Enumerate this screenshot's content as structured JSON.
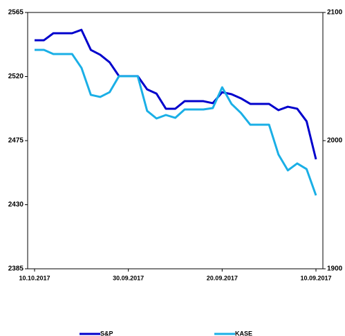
{
  "chart_data": {
    "type": "line",
    "categories": [
      "10.10.2017",
      null,
      null,
      null,
      null,
      null,
      null,
      null,
      null,
      null,
      "30.09.2017",
      null,
      null,
      null,
      null,
      null,
      null,
      null,
      null,
      null,
      "20.09.2017",
      null,
      null,
      null,
      null,
      null,
      null,
      null,
      null,
      null,
      "10.09.2017"
    ],
    "series": [
      {
        "name": "S&P",
        "color": "#0000cc",
        "axis": "y",
        "values": [
          2545.5,
          2545.5,
          2550.4,
          2550.4,
          2550.4,
          2552.8,
          2538.7,
          2535.3,
          2530,
          2520.3,
          2520.3,
          2520.3,
          2511,
          2508,
          2497.4,
          2497.4,
          2502.7,
          2502.7,
          2502.7,
          2501.3,
          2509,
          2507.6,
          2504.7,
          2500.8,
          2500.8,
          2500.8,
          2496.4,
          2498.8,
          2497.4,
          2488.6,
          2461.9
        ]
      },
      {
        "name": "KASE",
        "color": "#1aafe6",
        "axis": "y2",
        "values": [
          2070.8,
          2070.8,
          2067.6,
          2067.6,
          2067.6,
          2056.8,
          2035.7,
          2034.1,
          2037.8,
          2050.3,
          2050.3,
          2050.3,
          2023.2,
          2017.3,
          2020,
          2017.8,
          2024.3,
          2024.3,
          2024.3,
          2025.4,
          2041.6,
          2028.6,
          2021.6,
          2012.4,
          2012.4,
          2012.4,
          1989.2,
          1976.8,
          1982.2,
          1977.8,
          1957.3
        ]
      }
    ],
    "ylim": [
      2385,
      2565
    ],
    "yticks": [
      2385,
      2430,
      2475,
      2520,
      2565
    ],
    "y2lim": [
      1900,
      2100
    ],
    "y2ticks": [
      1900,
      2000,
      2100
    ],
    "legend": "bottom"
  }
}
